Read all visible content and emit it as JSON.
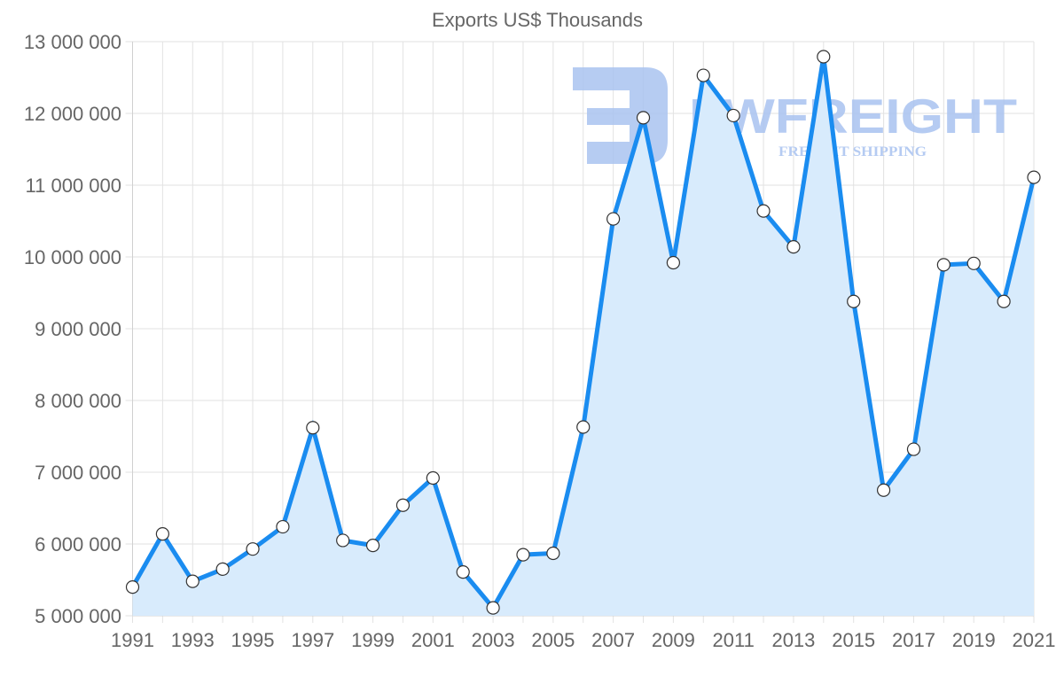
{
  "chart_data": {
    "type": "line",
    "title": "Exports US$ Thousands",
    "xlabel": "",
    "ylabel": "",
    "ylim": [
      5000000,
      13000000
    ],
    "yticks": [
      5000000,
      6000000,
      7000000,
      8000000,
      9000000,
      10000000,
      11000000,
      12000000,
      13000000
    ],
    "ytick_labels": [
      "5 000 000",
      "6 000 000",
      "7 000 000",
      "8 000 000",
      "9 000 000",
      "10 000 000",
      "11 000 000",
      "12 000 000",
      "13 000 000"
    ],
    "xtick_labels": [
      "1991",
      "1993",
      "1995",
      "1997",
      "1999",
      "2001",
      "2003",
      "2005",
      "2007",
      "2009",
      "2011",
      "2013",
      "2015",
      "2017",
      "2019",
      "2021"
    ],
    "grid": true,
    "legend": null,
    "fill": true,
    "categories": [
      "1991",
      "1992",
      "1993",
      "1994",
      "1995",
      "1996",
      "1997",
      "1998",
      "1999",
      "2000",
      "2001",
      "2002",
      "2003",
      "2004",
      "2005",
      "2006",
      "2007",
      "2008",
      "2009",
      "2010",
      "2011",
      "2012",
      "2013",
      "2014",
      "2015",
      "2016",
      "2017",
      "2018",
      "2019",
      "2020",
      "2021"
    ],
    "series": [
      {
        "name": "Exports US$ Thousands",
        "color": "#1a8cf0",
        "fill_color": "#d8ebfc",
        "values": [
          5400000,
          6140000,
          5480000,
          5650000,
          5930000,
          6240000,
          7620000,
          6050000,
          5980000,
          6540000,
          6920000,
          5610000,
          5110000,
          5850000,
          5870000,
          7630000,
          10530000,
          11940000,
          9920000,
          12530000,
          11970000,
          10640000,
          10140000,
          12790000,
          9380000,
          6750000,
          7320000,
          9890000,
          9910000,
          9380000,
          11110000
        ]
      }
    ]
  },
  "watermark": {
    "brand": "FWFREIGHT",
    "tagline": "FREIGHT SHIPPING",
    "color": "#a9c3f0"
  }
}
